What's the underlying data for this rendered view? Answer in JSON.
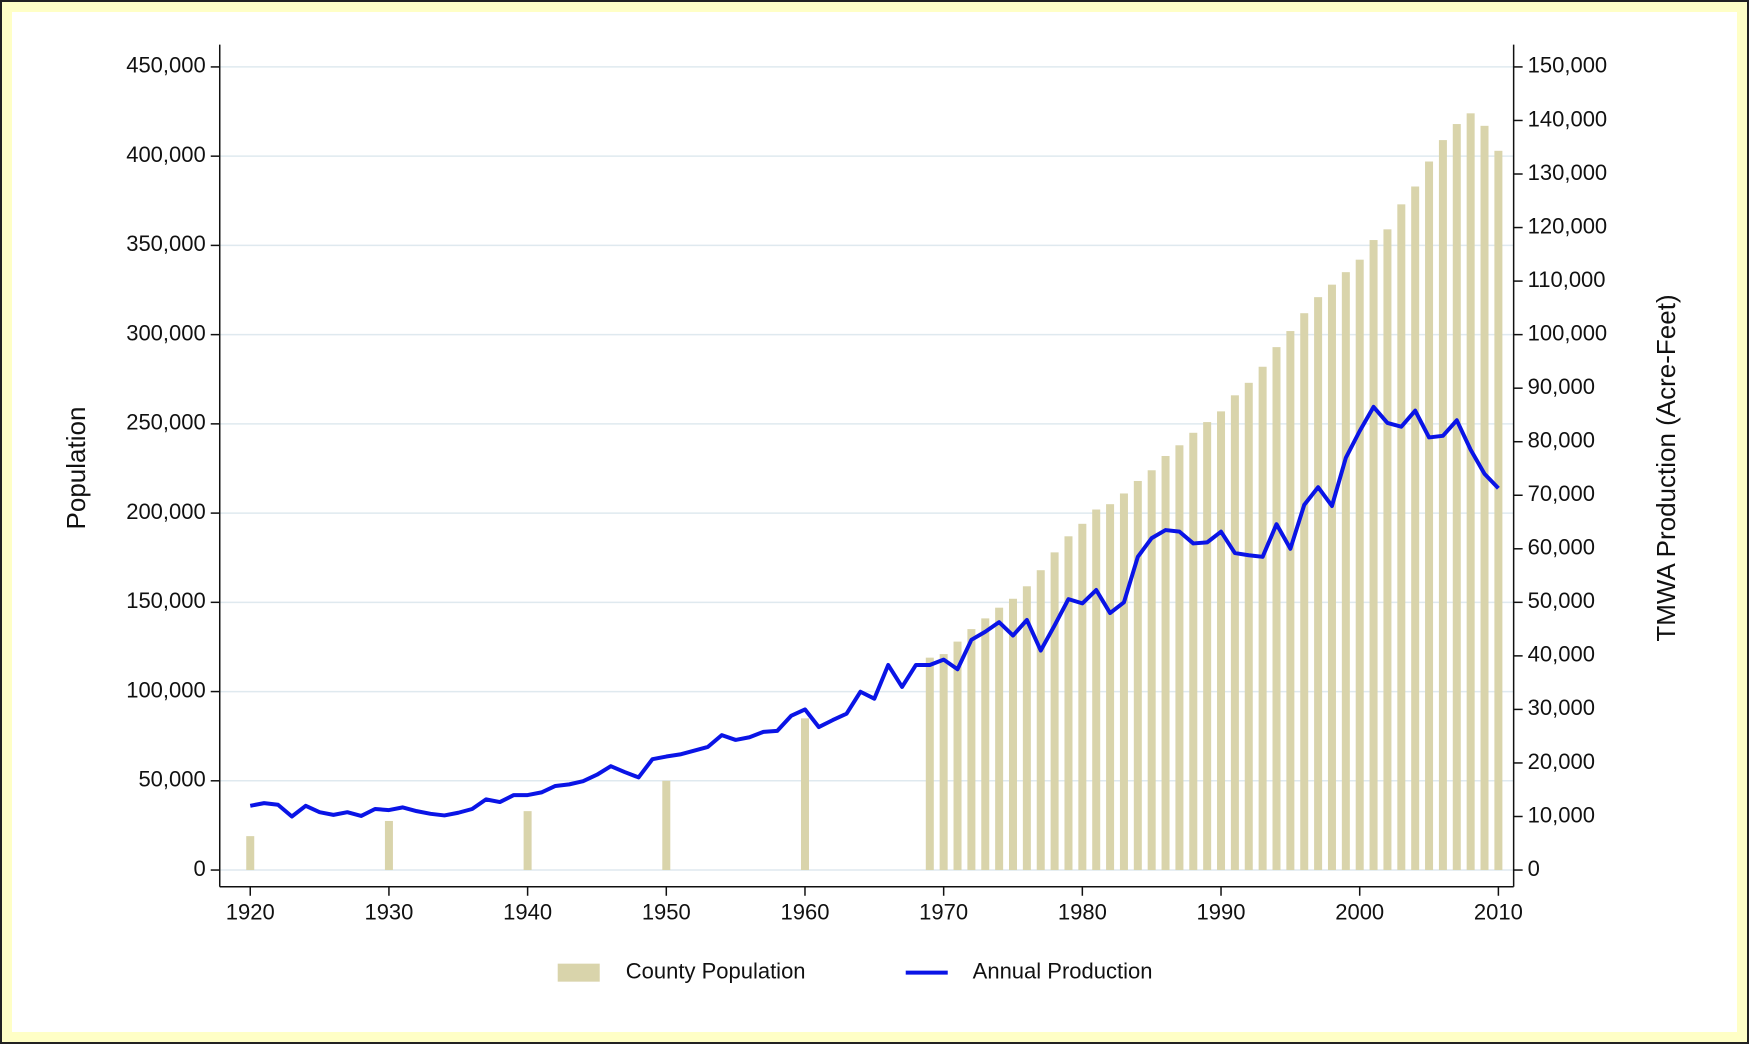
{
  "chart_data": {
    "type": "bar_line",
    "ylabel": "Population",
    "y2label": "TMWA Production (Acre-Feet)",
    "xlim": [
      1917.8,
      2011.1
    ],
    "xticks": [
      1920,
      1930,
      1940,
      1950,
      1960,
      1970,
      1980,
      1990,
      2000,
      2010
    ],
    "ylim": [
      0,
      450000
    ],
    "yticks": [
      0,
      {
        "value": 50000,
        "label": "50,000"
      },
      {
        "value": 100000,
        "label": "100,000"
      },
      {
        "value": 150000,
        "label": "150,000"
      },
      {
        "value": 200000,
        "label": "200,000"
      },
      {
        "value": 250000,
        "label": "250,000"
      },
      {
        "value": 300000,
        "label": "300,000"
      },
      {
        "value": 350000,
        "label": "350,000"
      },
      {
        "value": 400000,
        "label": "400,000"
      },
      {
        "value": 450000,
        "label": "450,000"
      }
    ],
    "y2lim": [
      0,
      150000
    ],
    "y2ticks": [
      0,
      {
        "value": 10000,
        "label": "10,000"
      },
      {
        "value": 20000,
        "label": "20,000"
      },
      {
        "value": 30000,
        "label": "30,000"
      },
      {
        "value": 40000,
        "label": "40,000"
      },
      {
        "value": 50000,
        "label": "50,000"
      },
      {
        "value": 60000,
        "label": "60,000"
      },
      {
        "value": 70000,
        "label": "70,000"
      },
      {
        "value": 80000,
        "label": "80,000"
      },
      {
        "value": 90000,
        "label": "90,000"
      },
      {
        "value": 100000,
        "label": "100,000"
      },
      {
        "value": 110000,
        "label": "110,000"
      },
      {
        "value": 120000,
        "label": "120,000"
      },
      {
        "value": 130000,
        "label": "130,000"
      },
      {
        "value": 140000,
        "label": "140,000"
      },
      {
        "value": 150000,
        "label": "150,000"
      }
    ],
    "grid": true,
    "legend": "bottom",
    "series": [
      {
        "name": "County Population",
        "type": "bar",
        "color": "#d9d4ab",
        "x": [
          1920,
          1930,
          1940,
          1950,
          1960,
          1969,
          1970,
          1971,
          1972,
          1973,
          1974,
          1975,
          1976,
          1977,
          1978,
          1979,
          1980,
          1981,
          1982,
          1983,
          1984,
          1985,
          1986,
          1987,
          1988,
          1989,
          1990,
          1991,
          1992,
          1993,
          1994,
          1995,
          1996,
          1997,
          1998,
          1999,
          2000,
          2001,
          2002,
          2003,
          2004,
          2005,
          2006,
          2007,
          2008,
          2009,
          2010
        ],
        "values": [
          19000,
          27500,
          33000,
          50000,
          85000,
          119000,
          121000,
          128000,
          135000,
          141000,
          147000,
          152000,
          159000,
          168000,
          178000,
          187000,
          194000,
          202000,
          205000,
          211000,
          218000,
          224000,
          232000,
          238000,
          245000,
          251000,
          257000,
          266000,
          273000,
          282000,
          293000,
          302000,
          312000,
          321000,
          328000,
          335000,
          342000,
          353000,
          359000,
          373000,
          383000,
          397000,
          409000,
          418000,
          424000,
          417000,
          403000
        ]
      },
      {
        "name": "Annual Production",
        "type": "line",
        "axis": "y2",
        "color": "#0a14e6",
        "x": [
          1920,
          1921,
          1922,
          1923,
          1924,
          1925,
          1926,
          1927,
          1928,
          1929,
          1930,
          1931,
          1932,
          1933,
          1934,
          1935,
          1936,
          1937,
          1938,
          1939,
          1940,
          1941,
          1942,
          1943,
          1944,
          1945,
          1946,
          1947,
          1948,
          1949,
          1950,
          1951,
          1952,
          1953,
          1954,
          1955,
          1956,
          1957,
          1958,
          1959,
          1960,
          1961,
          1962,
          1963,
          1964,
          1965,
          1966,
          1967,
          1968,
          1969,
          1970,
          1971,
          1972,
          1973,
          1974,
          1975,
          1976,
          1977,
          1978,
          1979,
          1980,
          1981,
          1982,
          1983,
          1984,
          1985,
          1986,
          1987,
          1988,
          1989,
          1990,
          1991,
          1992,
          1993,
          1994,
          1995,
          1996,
          1997,
          1998,
          1999,
          2000,
          2001,
          2002,
          2003,
          2004,
          2005,
          2006,
          2007,
          2008,
          2009,
          2010
        ],
        "values": [
          12000,
          12500,
          12200,
          10000,
          12000,
          10800,
          10300,
          10800,
          10100,
          11400,
          11200,
          11700,
          11000,
          10500,
          10200,
          10700,
          11400,
          13200,
          12700,
          14000,
          14000,
          14500,
          15700,
          16000,
          16600,
          17800,
          19400,
          18300,
          17300,
          20700,
          21200,
          21600,
          22300,
          23000,
          25200,
          24300,
          24800,
          25800,
          26000,
          28800,
          30000,
          26700,
          28000,
          29200,
          33300,
          32000,
          38300,
          34200,
          38300,
          38300,
          39300,
          37500,
          43000,
          44500,
          46300,
          43800,
          46700,
          41000,
          45700,
          50600,
          49800,
          52300,
          48000,
          50000,
          58500,
          62000,
          63500,
          63200,
          61000,
          61200,
          63200,
          59200,
          58800,
          58500,
          64600,
          60000,
          68200,
          71500,
          68000,
          77000,
          82000,
          86500,
          83500,
          82800,
          85800,
          80800,
          81100,
          84000,
          78500,
          74000,
          71300
        ]
      }
    ]
  }
}
